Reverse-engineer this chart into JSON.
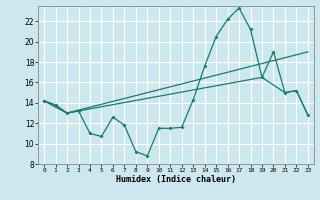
{
  "xlabel": "Humidex (Indice chaleur)",
  "bg_color": "#cce8ee",
  "grid_color": "#ffffff",
  "line_color": "#1a7a6e",
  "xlim": [
    -0.5,
    23.5
  ],
  "ylim": [
    8,
    23.5
  ],
  "yticks": [
    8,
    10,
    12,
    14,
    16,
    18,
    20,
    22
  ],
  "xticks": [
    0,
    1,
    2,
    3,
    4,
    5,
    6,
    7,
    8,
    9,
    10,
    11,
    12,
    13,
    14,
    15,
    16,
    17,
    18,
    19,
    20,
    21,
    22,
    23
  ],
  "line1_x": [
    0,
    1,
    2,
    3,
    4,
    5,
    6,
    7,
    8,
    9,
    10,
    11,
    12,
    13,
    14,
    15,
    16,
    17,
    18,
    19,
    20,
    21,
    22,
    23
  ],
  "line1_y": [
    14.2,
    13.8,
    13.0,
    13.2,
    11.0,
    10.7,
    12.6,
    11.8,
    9.2,
    8.8,
    11.5,
    11.5,
    11.6,
    14.3,
    17.6,
    20.5,
    22.2,
    23.3,
    21.2,
    16.5,
    19.0,
    15.0,
    15.2,
    12.8
  ],
  "line2_x": [
    0,
    2,
    23
  ],
  "line2_y": [
    14.2,
    13.0,
    19.0
  ],
  "line3_x": [
    0,
    2,
    19,
    21,
    22,
    23
  ],
  "line3_y": [
    14.2,
    13.0,
    16.5,
    15.0,
    15.2,
    12.8
  ]
}
